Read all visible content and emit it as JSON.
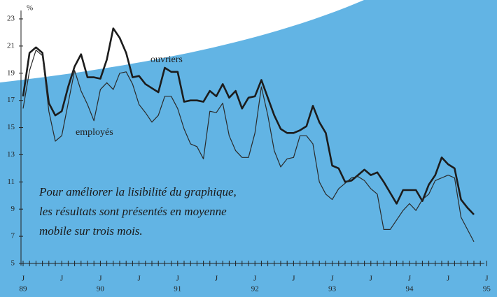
{
  "chart_data": {
    "type": "line",
    "y_unit": "%",
    "ylim": [
      5,
      23
    ],
    "yticks": [
      5,
      7,
      9,
      11,
      13,
      15,
      17,
      19,
      21,
      23
    ],
    "categories": [
      "J",
      null,
      null,
      null,
      null,
      null,
      "J",
      null,
      null,
      null,
      null,
      null,
      "J",
      null,
      null,
      null,
      null,
      null,
      "J",
      null,
      null,
      null,
      null,
      null,
      "J",
      null,
      null,
      null,
      null,
      null,
      "J",
      null,
      null,
      null,
      null,
      null,
      "J",
      null,
      null,
      null,
      null,
      null,
      "J",
      null,
      null,
      null,
      null,
      null,
      "J",
      null,
      null,
      null,
      null,
      null,
      "J",
      null,
      null,
      null,
      null,
      null,
      "J",
      null,
      null,
      null,
      null,
      null,
      "J",
      null,
      null,
      null,
      null,
      null,
      "J"
    ],
    "year_labels": [
      "89",
      "90",
      "91",
      "92",
      "93",
      "94",
      "95"
    ],
    "series": [
      {
        "name": "ouvriers",
        "color": "#1c1c1c",
        "values": [
          17.3,
          20.5,
          20.9,
          20.5,
          16.8,
          15.9,
          16.2,
          18.0,
          19.5,
          20.4,
          18.7,
          18.7,
          18.6,
          20.0,
          22.3,
          21.6,
          20.5,
          18.7,
          18.8,
          18.2,
          17.9,
          17.6,
          19.4,
          19.1,
          19.1,
          16.9,
          17.0,
          17.0,
          16.9,
          17.7,
          17.3,
          18.2,
          17.2,
          17.7,
          16.4,
          17.2,
          17.3,
          18.5,
          17.2,
          15.9,
          14.9,
          14.6,
          14.6,
          14.8,
          15.1,
          16.6,
          15.4,
          14.6,
          12.2,
          12.0,
          11.0,
          11.1,
          11.5,
          11.9,
          11.5,
          11.7,
          11.0,
          10.2,
          9.4,
          10.4,
          10.4,
          10.4,
          9.6,
          10.8,
          11.5,
          12.8,
          12.3,
          12.0,
          9.7,
          9.1,
          8.6,
          null,
          null
        ]
      },
      {
        "name": "employés",
        "color": "#2a2a2a",
        "values": [
          16.4,
          19.2,
          20.7,
          20.3,
          16.2,
          14.0,
          14.4,
          16.8,
          19.2,
          17.7,
          16.7,
          15.5,
          17.8,
          18.3,
          17.8,
          19.0,
          19.1,
          18.2,
          16.7,
          16.1,
          15.4,
          15.9,
          17.3,
          17.3,
          16.4,
          14.9,
          13.8,
          13.6,
          12.7,
          16.2,
          16.1,
          16.8,
          14.4,
          13.3,
          12.8,
          12.8,
          14.6,
          18.0,
          15.9,
          13.3,
          12.1,
          12.7,
          12.8,
          14.4,
          14.4,
          13.8,
          11.0,
          10.1,
          9.7,
          10.5,
          10.9,
          11.3,
          11.4,
          11.1,
          10.5,
          10.1,
          7.5,
          7.5,
          8.2,
          8.9,
          9.4,
          8.9,
          9.7,
          10.1,
          11.1,
          11.3,
          11.5,
          11.3,
          8.4,
          7.5,
          6.6,
          null,
          null
        ]
      }
    ],
    "annotation": [
      "Pour améliorer la lisibilité du graphique,",
      "les résultats sont présentés en moyenne",
      "mobile sur trois mois."
    ]
  }
}
